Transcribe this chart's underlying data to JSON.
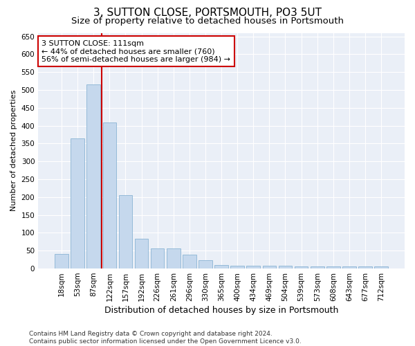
{
  "title": "3, SUTTON CLOSE, PORTSMOUTH, PO3 5UT",
  "subtitle": "Size of property relative to detached houses in Portsmouth",
  "xlabel": "Distribution of detached houses by size in Portsmouth",
  "ylabel": "Number of detached properties",
  "categories": [
    "18sqm",
    "53sqm",
    "87sqm",
    "122sqm",
    "157sqm",
    "192sqm",
    "226sqm",
    "261sqm",
    "296sqm",
    "330sqm",
    "365sqm",
    "400sqm",
    "434sqm",
    "469sqm",
    "504sqm",
    "539sqm",
    "573sqm",
    "608sqm",
    "643sqm",
    "677sqm",
    "712sqm"
  ],
  "values": [
    40,
    365,
    515,
    410,
    205,
    83,
    57,
    57,
    38,
    23,
    10,
    8,
    8,
    8,
    8,
    5,
    5,
    5,
    5,
    5,
    5
  ],
  "bar_color": "#c5d8ed",
  "bar_edge_color": "#8ab4d4",
  "bar_width": 0.85,
  "vline_x": 2.5,
  "vline_color": "#cc0000",
  "annotation_text": "3 SUTTON CLOSE: 111sqm\n← 44% of detached houses are smaller (760)\n56% of semi-detached houses are larger (984) →",
  "annotation_box_color": "#ffffff",
  "annotation_box_edge": "#cc0000",
  "ylim": [
    0,
    660
  ],
  "yticks": [
    0,
    50,
    100,
    150,
    200,
    250,
    300,
    350,
    400,
    450,
    500,
    550,
    600,
    650
  ],
  "bg_color": "#eaeff7",
  "grid_color": "#ffffff",
  "footnote": "Contains HM Land Registry data © Crown copyright and database right 2024.\nContains public sector information licensed under the Open Government Licence v3.0.",
  "title_fontsize": 11,
  "subtitle_fontsize": 9.5,
  "xlabel_fontsize": 9,
  "ylabel_fontsize": 8,
  "tick_fontsize": 7.5,
  "annotation_fontsize": 8,
  "footnote_fontsize": 6.5
}
